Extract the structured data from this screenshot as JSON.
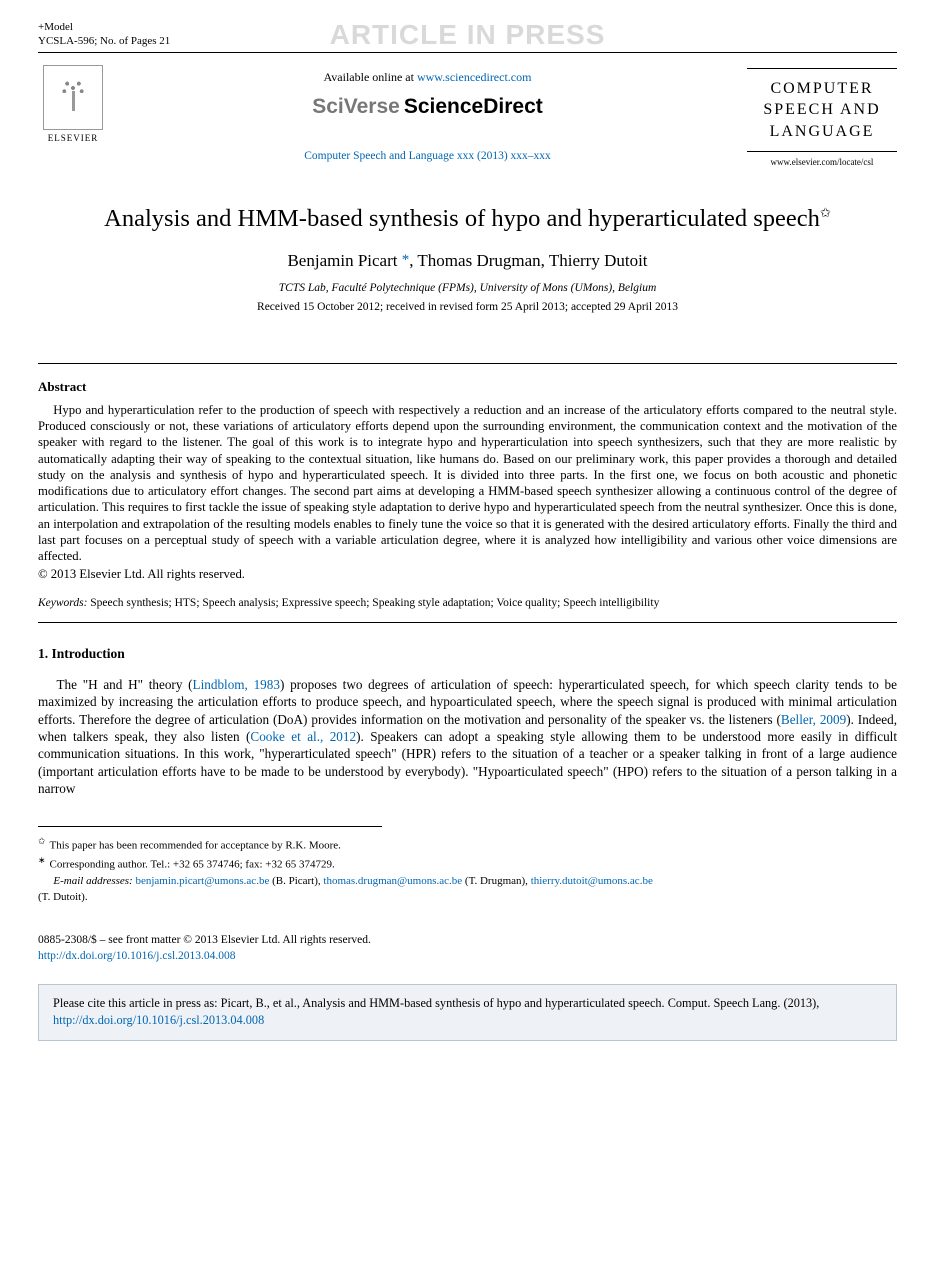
{
  "header": {
    "model_line": "+Model",
    "ref_line": "YCSLA-596;    No. of Pages 21",
    "watermark": "ARTICLE IN PRESS"
  },
  "pub": {
    "available_prefix": "Available online at ",
    "available_url": "www.sciencedirect.com",
    "brand_prefix": "SciVerse",
    "brand_main": "ScienceDirect",
    "elsevier_label": "ELSEVIER",
    "journal_ref": "Computer Speech and Language xxx (2013) xxx–xxx",
    "cover_line1": "COMPUTER",
    "cover_line2": "SPEECH AND",
    "cover_line3": "LANGUAGE",
    "cover_url": "www.elsevier.com/locate/csl"
  },
  "paper": {
    "title": "Analysis and HMM-based synthesis of hypo and hyperarticulated speech",
    "authors_pre": "Benjamin Picart ",
    "authors_post": ", Thomas Drugman, Thierry Dutoit",
    "affiliation": "TCTS Lab, Faculté Polytechnique (FPMs), University of Mons (UMons), Belgium",
    "dates": "Received 15 October 2012; received in revised form 25 April 2013; accepted 29 April 2013"
  },
  "abstract": {
    "heading": "Abstract",
    "body": "Hypo and hyperarticulation refer to the production of speech with respectively a reduction and an increase of the articulatory efforts compared to the neutral style. Produced consciously or not, these variations of articulatory efforts depend upon the surrounding environment, the communication context and the motivation of the speaker with regard to the listener. The goal of this work is to integrate hypo and hyperarticulation into speech synthesizers, such that they are more realistic by automatically adapting their way of speaking to the contextual situation, like humans do. Based on our preliminary work, this paper provides a thorough and detailed study on the analysis and synthesis of hypo and hyperarticulated speech. It is divided into three parts. In the first one, we focus on both acoustic and phonetic modifications due to articulatory effort changes. The second part aims at developing a HMM-based speech synthesizer allowing a continuous control of the degree of articulation. This requires to first tackle the issue of speaking style adaptation to derive hypo and hyperarticulated speech from the neutral synthesizer. Once this is done, an interpolation and extrapolation of the resulting models enables to finely tune the voice so that it is generated with the desired articulatory efforts. Finally the third and last part focuses on a perceptual study of speech with a variable articulation degree, where it is analyzed how intelligibility and various other voice dimensions are affected.",
    "copyright": "© 2013 Elsevier Ltd. All rights reserved.",
    "kw_label": "Keywords:",
    "keywords": "  Speech synthesis; HTS; Speech analysis; Expressive speech; Speaking style adaptation; Voice quality; Speech intelligibility"
  },
  "section1": {
    "heading": "1.  Introduction",
    "p1_a": "The \"H and H\" theory (",
    "p1_ref1": "Lindblom, 1983",
    "p1_b": ") proposes two degrees of articulation of speech: hyperarticulated speech, for which speech clarity tends to be maximized by increasing the articulation efforts to produce speech, and hypoarticulated speech, where the speech signal is produced with minimal articulation efforts. Therefore the degree of articulation (DoA) provides information on the motivation and personality of the speaker vs. the listeners (",
    "p1_ref2": "Beller, 2009",
    "p1_c": "). Indeed, when talkers speak, they also listen (",
    "p1_ref3": "Cooke et al., 2012",
    "p1_d": "). Speakers can adopt a speaking style allowing them to be understood more easily in difficult communication situations. In this work, \"hyperarticulated speech\" (HPR) refers to the situation of a teacher or a speaker talking in front of a large audience (important articulation efforts have to be made to be understood by everybody). \"Hypoarticulated speech\" (HPO) refers to the situation of a person talking in a narrow"
  },
  "footnotes": {
    "f1": "This paper has been recommended for acceptance by R.K. Moore.",
    "f2": "Corresponding author. Tel.: +32 65 374746; fax: +32 65 374729.",
    "email_label": "E-mail addresses:",
    "e1": "benjamin.picart@umons.ac.be",
    "e1_who": " (B. Picart), ",
    "e2": "thomas.drugman@umons.ac.be",
    "e2_who": " (T. Drugman), ",
    "e3": "thierry.dutoit@umons.ac.be",
    "e3_who": "(T. Dutoit)."
  },
  "frontmatter": {
    "line1": "0885-2308/$ – see front matter © 2013 Elsevier Ltd. All rights reserved.",
    "doi": "http://dx.doi.org/10.1016/j.csl.2013.04.008"
  },
  "citebox": {
    "text_a": "Please cite this article in press as: Picart, B., et al., Analysis and HMM-based synthesis of hypo and hyperarticulated speech. Comput. Speech Lang. (2013), ",
    "doi": "http://dx.doi.org/10.1016/j.csl.2013.04.008"
  },
  "colors": {
    "link": "#0066b3",
    "watermark": "#d9d9d9",
    "citebox_bg": "#eef1f5",
    "citebox_border": "#b8c4d0"
  }
}
